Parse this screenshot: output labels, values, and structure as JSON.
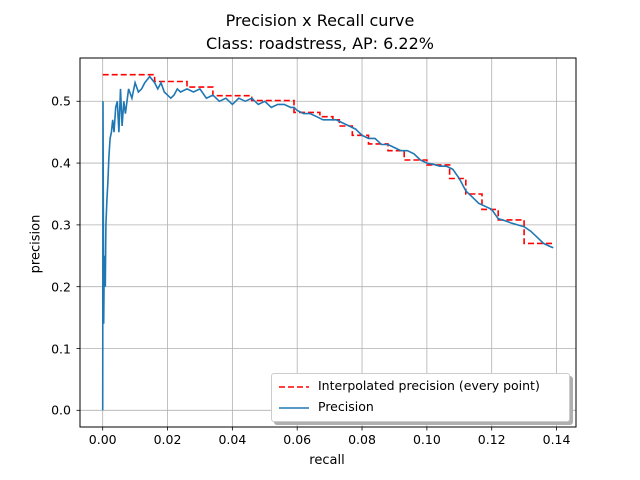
{
  "chart_data": {
    "type": "line",
    "title": "Precision x Recall curve",
    "subtitle": "Class: roadstress, AP: 6.22%",
    "xlabel": "recall",
    "ylabel": "precision",
    "xlim": [
      -0.007,
      0.146
    ],
    "ylim": [
      -0.027,
      0.57
    ],
    "xticks": [
      "0.00",
      "0.02",
      "0.04",
      "0.06",
      "0.08",
      "0.10",
      "0.12",
      "0.14"
    ],
    "yticks": [
      "0.0",
      "0.1",
      "0.2",
      "0.3",
      "0.4",
      "0.5"
    ],
    "grid": true,
    "legend_position": "lower-right",
    "series": [
      {
        "name": "Interpolated precision (every point)",
        "style": "dashed",
        "color": "#ff0000",
        "x": [
          0.0,
          0.016,
          0.016,
          0.026,
          0.026,
          0.034,
          0.034,
          0.046,
          0.046,
          0.059,
          0.059,
          0.067,
          0.067,
          0.071,
          0.071,
          0.073,
          0.073,
          0.077,
          0.077,
          0.082,
          0.082,
          0.088,
          0.088,
          0.093,
          0.093,
          0.1,
          0.1,
          0.107,
          0.107,
          0.112,
          0.112,
          0.117,
          0.117,
          0.122,
          0.122,
          0.13,
          0.13,
          0.139
        ],
        "y": [
          0.543,
          0.543,
          0.532,
          0.532,
          0.523,
          0.523,
          0.509,
          0.509,
          0.501,
          0.501,
          0.482,
          0.482,
          0.475,
          0.475,
          0.47,
          0.47,
          0.46,
          0.46,
          0.445,
          0.445,
          0.431,
          0.431,
          0.42,
          0.42,
          0.405,
          0.405,
          0.397,
          0.397,
          0.375,
          0.375,
          0.35,
          0.35,
          0.325,
          0.325,
          0.308,
          0.308,
          0.27,
          0.27
        ]
      },
      {
        "name": "Precision",
        "style": "solid",
        "color": "#1f77b4",
        "x": [
          0.0,
          0.0001,
          0.0003,
          0.0005,
          0.0008,
          0.001,
          0.0013,
          0.0016,
          0.0019,
          0.0023,
          0.0027,
          0.0031,
          0.0035,
          0.004,
          0.0045,
          0.005,
          0.0055,
          0.006,
          0.0065,
          0.007,
          0.0075,
          0.008,
          0.009,
          0.01,
          0.011,
          0.012,
          0.013,
          0.0145,
          0.016,
          0.017,
          0.018,
          0.019,
          0.02,
          0.021,
          0.022,
          0.023,
          0.024,
          0.026,
          0.028,
          0.03,
          0.032,
          0.034,
          0.036,
          0.038,
          0.04,
          0.042,
          0.044,
          0.046,
          0.048,
          0.05,
          0.052,
          0.054,
          0.056,
          0.058,
          0.059,
          0.06,
          0.062,
          0.064,
          0.066,
          0.068,
          0.07,
          0.072,
          0.074,
          0.076,
          0.078,
          0.08,
          0.082,
          0.084,
          0.086,
          0.088,
          0.09,
          0.092,
          0.094,
          0.096,
          0.098,
          0.1,
          0.102,
          0.104,
          0.106,
          0.108,
          0.11,
          0.112,
          0.114,
          0.116,
          0.118,
          0.12,
          0.122,
          0.124,
          0.126,
          0.128,
          0.13,
          0.132,
          0.134,
          0.136,
          0.138,
          0.139
        ],
        "y": [
          0.0,
          0.5,
          0.14,
          0.25,
          0.2,
          0.3,
          0.34,
          0.37,
          0.41,
          0.44,
          0.45,
          0.47,
          0.45,
          0.49,
          0.5,
          0.45,
          0.52,
          0.46,
          0.5,
          0.48,
          0.5,
          0.52,
          0.505,
          0.53,
          0.515,
          0.52,
          0.53,
          0.54,
          0.53,
          0.52,
          0.53,
          0.515,
          0.51,
          0.505,
          0.51,
          0.52,
          0.515,
          0.52,
          0.515,
          0.52,
          0.505,
          0.51,
          0.5,
          0.505,
          0.495,
          0.505,
          0.5,
          0.505,
          0.495,
          0.5,
          0.49,
          0.495,
          0.495,
          0.49,
          0.49,
          0.485,
          0.48,
          0.48,
          0.475,
          0.47,
          0.47,
          0.47,
          0.465,
          0.46,
          0.455,
          0.445,
          0.44,
          0.44,
          0.43,
          0.43,
          0.425,
          0.42,
          0.42,
          0.415,
          0.405,
          0.4,
          0.398,
          0.395,
          0.395,
          0.39,
          0.375,
          0.355,
          0.345,
          0.335,
          0.33,
          0.325,
          0.31,
          0.307,
          0.303,
          0.3,
          0.297,
          0.29,
          0.28,
          0.27,
          0.265,
          0.263
        ]
      }
    ]
  }
}
